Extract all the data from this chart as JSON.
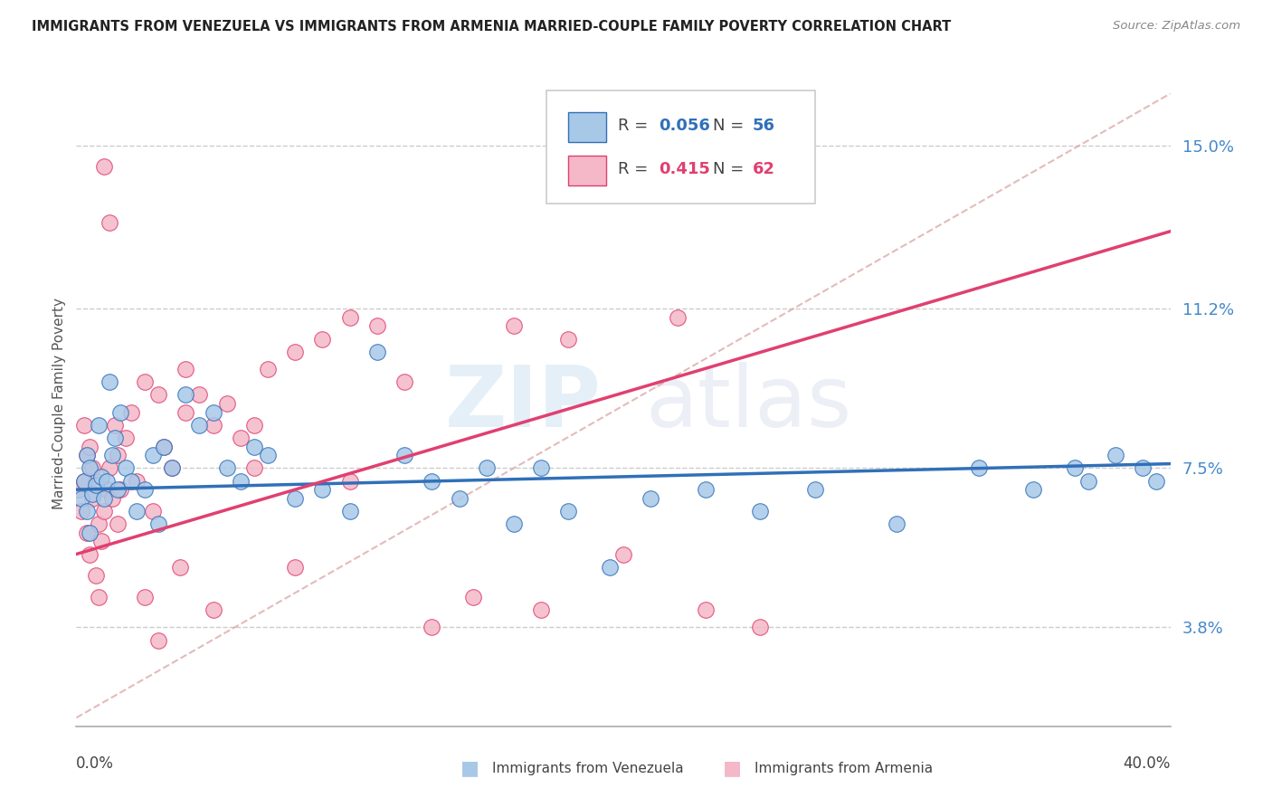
{
  "title": "IMMIGRANTS FROM VENEZUELA VS IMMIGRANTS FROM ARMENIA MARRIED-COUPLE FAMILY POVERTY CORRELATION CHART",
  "source": "Source: ZipAtlas.com",
  "ylabel": "Married-Couple Family Poverty",
  "yticks": [
    3.8,
    7.5,
    11.2,
    15.0
  ],
  "xlim": [
    0.0,
    40.0
  ],
  "ylim": [
    1.5,
    16.5
  ],
  "legend_r1_val": "0.056",
  "legend_n1_val": "56",
  "legend_r2_val": "0.415",
  "legend_n2_val": "62",
  "color_venezuela": "#a8c8e8",
  "color_armenia": "#f4b8c8",
  "color_venezuela_line": "#3070b8",
  "color_armenia_line": "#e04070",
  "watermark_zip": "ZIP",
  "watermark_atlas": "atlas",
  "venezuela_x": [
    0.2,
    0.3,
    0.4,
    0.4,
    0.5,
    0.5,
    0.6,
    0.7,
    0.8,
    0.9,
    1.0,
    1.1,
    1.2,
    1.3,
    1.4,
    1.5,
    1.6,
    1.8,
    2.0,
    2.2,
    2.5,
    2.8,
    3.0,
    3.2,
    3.5,
    4.0,
    4.5,
    5.0,
    5.5,
    6.0,
    6.5,
    7.0,
    8.0,
    9.0,
    10.0,
    11.0,
    12.0,
    13.0,
    14.0,
    15.0,
    16.0,
    17.0,
    18.0,
    19.5,
    21.0,
    23.0,
    25.0,
    27.0,
    30.0,
    33.0,
    35.0,
    36.5,
    37.0,
    38.0,
    39.0,
    39.5
  ],
  "venezuela_y": [
    6.8,
    7.2,
    6.5,
    7.8,
    6.0,
    7.5,
    6.9,
    7.1,
    8.5,
    7.3,
    6.8,
    7.2,
    9.5,
    7.8,
    8.2,
    7.0,
    8.8,
    7.5,
    7.2,
    6.5,
    7.0,
    7.8,
    6.2,
    8.0,
    7.5,
    9.2,
    8.5,
    8.8,
    7.5,
    7.2,
    8.0,
    7.8,
    6.8,
    7.0,
    6.5,
    10.2,
    7.8,
    7.2,
    6.8,
    7.5,
    6.2,
    7.5,
    6.5,
    5.2,
    6.8,
    7.0,
    6.5,
    7.0,
    6.2,
    7.5,
    7.0,
    7.5,
    7.2,
    7.8,
    7.5,
    7.2
  ],
  "armenia_x": [
    0.1,
    0.2,
    0.3,
    0.3,
    0.4,
    0.4,
    0.5,
    0.5,
    0.6,
    0.6,
    0.7,
    0.7,
    0.8,
    0.8,
    0.9,
    1.0,
    1.0,
    1.1,
    1.2,
    1.2,
    1.3,
    1.4,
    1.5,
    1.5,
    1.6,
    1.8,
    2.0,
    2.2,
    2.5,
    2.8,
    3.0,
    3.2,
    3.5,
    4.0,
    4.5,
    5.0,
    5.5,
    6.0,
    6.5,
    7.0,
    8.0,
    9.0,
    10.0,
    11.0,
    12.0,
    13.0,
    14.5,
    16.0,
    17.0,
    18.0,
    20.0,
    22.0,
    23.0,
    25.0,
    3.8,
    2.5,
    3.0,
    5.0,
    6.5,
    8.0,
    4.0,
    10.0
  ],
  "armenia_y": [
    7.0,
    6.5,
    8.5,
    7.2,
    6.0,
    7.8,
    5.5,
    8.0,
    6.8,
    7.5,
    5.0,
    7.2,
    4.5,
    6.2,
    5.8,
    6.5,
    14.5,
    7.0,
    13.2,
    7.5,
    6.8,
    8.5,
    6.2,
    7.8,
    7.0,
    8.2,
    8.8,
    7.2,
    9.5,
    6.5,
    9.2,
    8.0,
    7.5,
    8.8,
    9.2,
    8.5,
    9.0,
    8.2,
    8.5,
    9.8,
    10.2,
    10.5,
    11.0,
    10.8,
    9.5,
    3.8,
    4.5,
    10.8,
    4.2,
    10.5,
    5.5,
    11.0,
    4.2,
    3.8,
    5.2,
    4.5,
    3.5,
    4.2,
    7.5,
    5.2,
    9.8,
    7.2
  ]
}
